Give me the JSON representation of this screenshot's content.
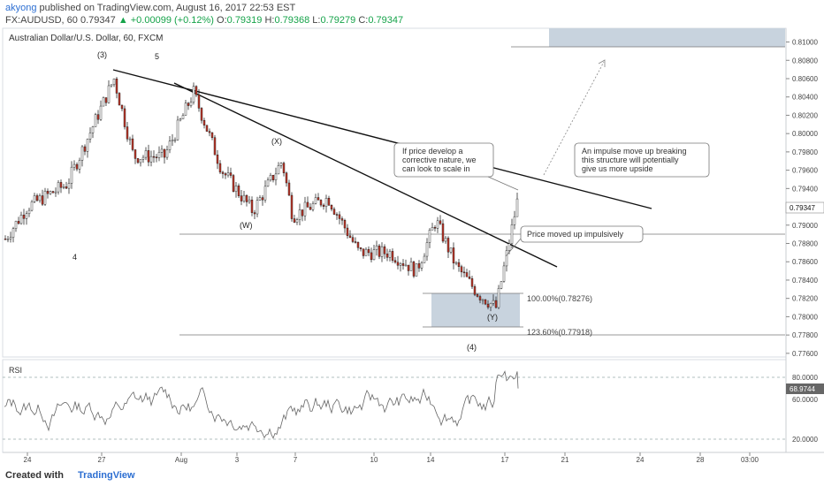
{
  "header": {
    "author": "akyong",
    "published_text": "published on TradingView.com, August 16, 2017 22:53 EST",
    "symbol": "FX:AUDUSD, 60",
    "last": "0.79347",
    "change": "▲ +0.00099 (+0.12%)",
    "o_label": "O:",
    "o_value": "0.79319",
    "h_label": "H:",
    "h_value": "0.79368",
    "l_label": "L:",
    "l_value": "0.79279",
    "c_label": "C:",
    "c_value": "0.79347"
  },
  "chart_title": "Australian Dollar/U.S. Dollar, 60, FXCM",
  "price_axis": {
    "ticks": [
      "0.81000",
      "0.80800",
      "0.80600",
      "0.80400",
      "0.80200",
      "0.80000",
      "0.79800",
      "0.79600",
      "0.79400",
      "0.79200",
      "0.79000",
      "0.78800",
      "0.78600",
      "0.78400",
      "0.78200",
      "0.78000",
      "0.77800",
      "0.77600"
    ],
    "last_price_label": "0.79347"
  },
  "time_axis": {
    "ticks": [
      "24",
      "27",
      "Aug",
      "3",
      "7",
      "10",
      "14",
      "17",
      "21",
      "24",
      "28",
      "03:00"
    ]
  },
  "rsi": {
    "label": "RSI",
    "ticks": [
      "80.0000",
      "60.0000",
      "20.0000"
    ],
    "current_label": "68.9744"
  },
  "wave_labels": {
    "w3": "(3)",
    "w5": "5",
    "w4a": "4",
    "wX": "(X)",
    "wW": "(W)",
    "wY": "(Y)",
    "w4b": "(4)"
  },
  "fib_labels": {
    "f100": "100.00%(0.78276)",
    "f123": "123.60%(0.77918)"
  },
  "callouts": {
    "c1_line1": "If price develop a",
    "c1_line2": "corrective nature, we",
    "c1_line3": "can look to scale in",
    "c2_line1": "An impulse move up breaking",
    "c2_line2": "this structure will potentially",
    "c2_line3": "give us more upside",
    "c3": "Price moved up impulsively"
  },
  "footer": {
    "created_with": "Created with",
    "brand": "TradingView"
  },
  "chart_data": {
    "type": "candlestick",
    "title": "Australian Dollar/U.S. Dollar, 60, FXCM",
    "ylim": [
      0.7756,
      0.8115
    ],
    "x_ticks": [
      "24",
      "27",
      "Aug",
      "3",
      "7",
      "10",
      "14",
      "17",
      "21",
      "24",
      "28",
      "03:00"
    ],
    "close_path": [
      {
        "x": "24",
        "y": 0.7885
      },
      {
        "x": "",
        "y": 0.792
      },
      {
        "x": "",
        "y": 0.7945
      },
      {
        "x": "27",
        "y": 0.806
      },
      {
        "x": "",
        "y": 0.7975
      },
      {
        "x": "",
        "y": 0.7975
      },
      {
        "x": "Aug",
        "y": 0.8045
      },
      {
        "x": "",
        "y": 0.796
      },
      {
        "x": "3",
        "y": 0.7915
      },
      {
        "x": "",
        "y": 0.797
      },
      {
        "x": "7",
        "y": 0.791
      },
      {
        "x": "",
        "y": 0.793
      },
      {
        "x": "10",
        "y": 0.787
      },
      {
        "x": "",
        "y": 0.787
      },
      {
        "x": "",
        "y": 0.785
      },
      {
        "x": "14",
        "y": 0.7905
      },
      {
        "x": "",
        "y": 0.7855
      },
      {
        "x": "",
        "y": 0.7825
      },
      {
        "x": "",
        "y": 0.781
      },
      {
        "x": "17",
        "y": 0.7935
      }
    ],
    "levels": {
      "fib_100": 0.78276,
      "fib_123_6": 0.77918,
      "last": 0.79347
    },
    "rsi_current": 68.9744,
    "rsi_levels": [
      80,
      20
    ],
    "grid": false
  }
}
